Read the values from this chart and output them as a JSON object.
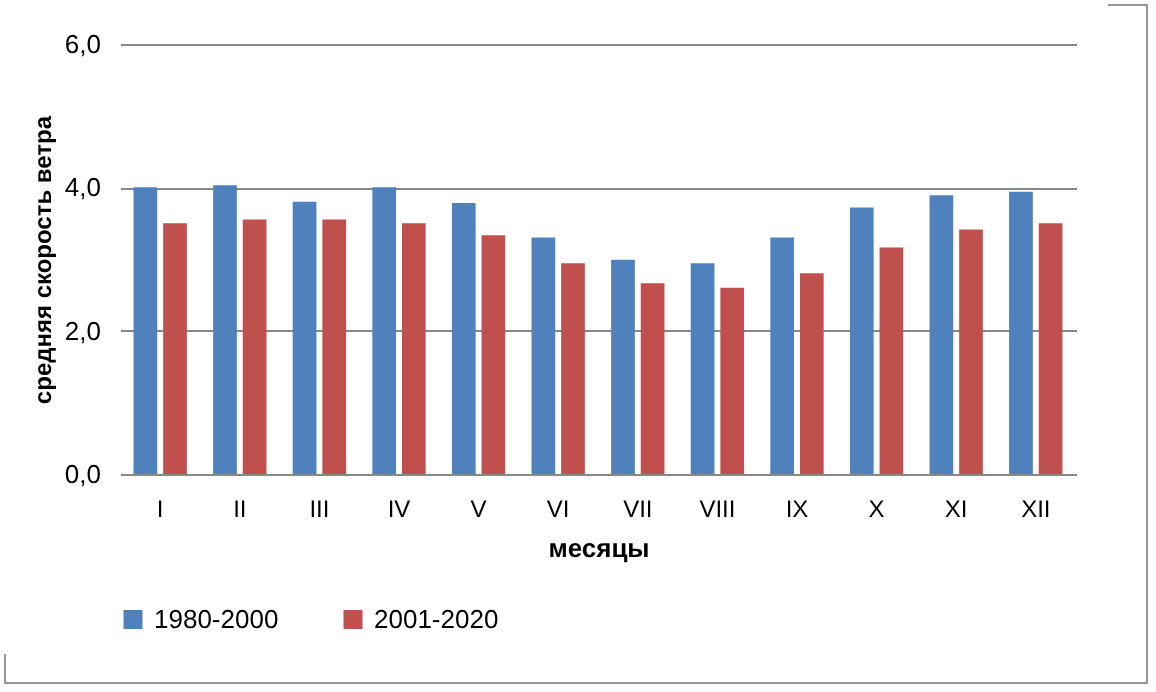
{
  "chart_data": {
    "type": "bar",
    "xlabel": "месяцы",
    "ylabel": "средняя скорость ветра",
    "categories": [
      "I",
      "II",
      "III",
      "IV",
      "V",
      "VI",
      "VII",
      "VIII",
      "IX",
      "X",
      "XI",
      "XII"
    ],
    "series": [
      {
        "name": "1980-2000",
        "color": "#4f81bd",
        "values": [
          4.0,
          4.03,
          3.8,
          4.0,
          3.78,
          3.3,
          2.99,
          2.94,
          3.3,
          3.72,
          3.89,
          3.94
        ]
      },
      {
        "name": "2001-2020",
        "color": "#c0504d",
        "values": [
          3.5,
          3.55,
          3.55,
          3.5,
          3.33,
          2.94,
          2.66,
          2.6,
          2.8,
          3.16,
          3.41,
          3.5
        ]
      }
    ],
    "ylim": [
      0,
      6
    ],
    "yticks": [
      {
        "value": 0,
        "label": "0,0"
      },
      {
        "value": 2,
        "label": "2,0"
      },
      {
        "value": 4,
        "label": "4,0"
      },
      {
        "value": 6,
        "label": "6,0"
      }
    ],
    "grid": "y",
    "legend": "bottom"
  }
}
